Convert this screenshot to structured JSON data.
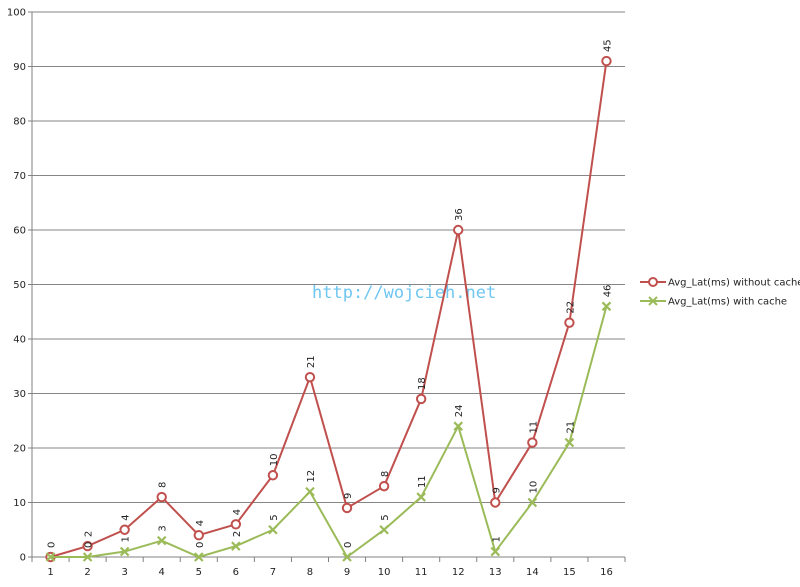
{
  "watermark": "http://wojcieh.net",
  "chart_data": {
    "type": "line",
    "title": "",
    "xlabel": "",
    "ylabel": "",
    "x": [
      1,
      2,
      3,
      4,
      5,
      6,
      7,
      8,
      9,
      10,
      11,
      12,
      13,
      14,
      15,
      16
    ],
    "ylim": [
      0,
      100
    ],
    "yticks": [
      0,
      10,
      20,
      30,
      40,
      50,
      60,
      70,
      80,
      90,
      100
    ],
    "grid": "horizontal",
    "legend_position": "right",
    "series": [
      {
        "name": "Avg_Lat(ms) without cache",
        "color": "#c0504d",
        "marker": "circle",
        "values": [
          0,
          2,
          5,
          11,
          4,
          6,
          15,
          33,
          9,
          13,
          29,
          60,
          10,
          21,
          43,
          91
        ],
        "labels": [
          "0",
          "2",
          "4",
          "8",
          "4",
          "4",
          "10",
          "21",
          "9",
          "8",
          "18",
          "36",
          "9",
          "11",
          "22",
          "45"
        ]
      },
      {
        "name": "Avg_Lat(ms) with cache",
        "color": "#9bbb59",
        "marker": "x",
        "values": [
          0,
          0,
          1,
          3,
          0,
          2,
          5,
          12,
          0,
          5,
          11,
          24,
          1,
          10,
          21,
          46
        ],
        "labels": [
          "",
          "0",
          "1",
          "3",
          "0",
          "2",
          "5",
          "12",
          "0",
          "5",
          "11",
          "24",
          "1",
          "10",
          "21",
          "46"
        ]
      }
    ]
  }
}
